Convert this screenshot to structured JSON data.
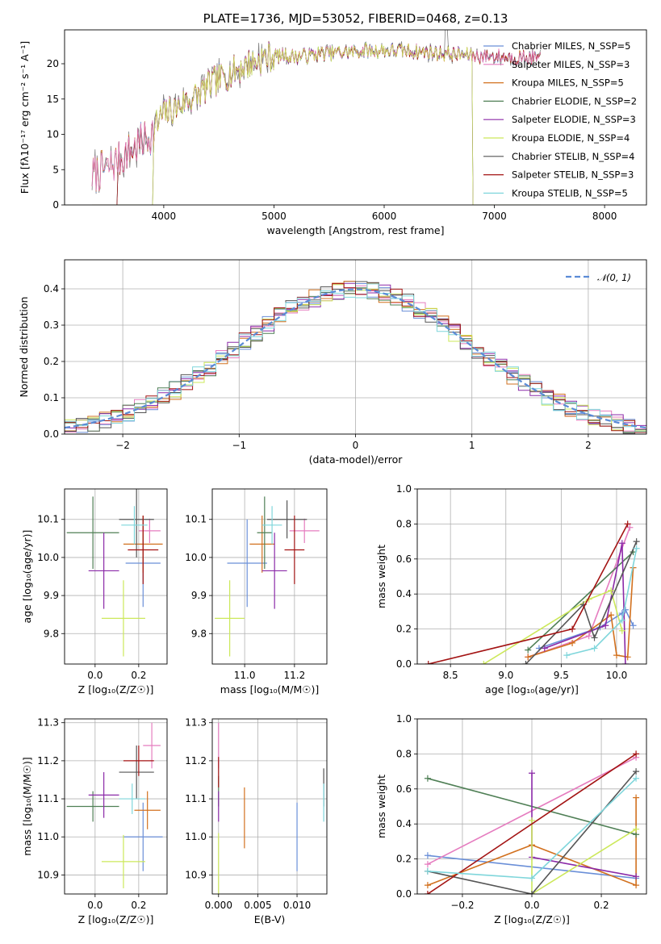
{
  "colors": {
    "chabrier_miles": "#6a8fd8",
    "salpeter_miles": "#e57cbf",
    "kroupa_miles": "#d2711f",
    "chabrier_elodie": "#4f7f55",
    "salpeter_elodie": "#8b2aa8",
    "kroupa_elodie": "#cce85a",
    "chabrier_stelib": "#555555",
    "salpeter_stelib": "#a31313",
    "kroupa_stelib": "#7fd6db",
    "normal_curve": "#5b8bd6",
    "grid": "#b0b0b0"
  },
  "chart_data": [
    {
      "id": "spectrum",
      "type": "line",
      "title": "PLATE=1736, MJD=53052, FIBERID=0468, z=0.13",
      "xlabel": "wavelength [Angstrom, rest frame]",
      "ylabel": "Flux [fλ10⁻¹⁷ erg cm⁻² s⁻¹ A⁻¹]",
      "xlim": [
        3100,
        8380
      ],
      "ylim": [
        0,
        24.8
      ],
      "xticks": [
        "4000",
        "5000",
        "6000",
        "7000",
        "8000"
      ],
      "yticks": [
        "0",
        "5",
        "10",
        "15",
        "20"
      ],
      "legend_position": "right",
      "grid": false,
      "series": [
        {
          "name": "Chabrier MILES, N_SSP=5"
        },
        {
          "name": "Salpeter MILES, N_SSP=3"
        },
        {
          "name": "Kroupa MILES, N_SSP=5"
        },
        {
          "name": "Chabrier ELODIE, N_SSP=2"
        },
        {
          "name": "Salpeter ELODIE, N_SSP=3"
        },
        {
          "name": "Kroupa ELODIE, N_SSP=4"
        },
        {
          "name": "Chabrier STELIB, N_SSP=4"
        },
        {
          "name": "Salpeter STELIB, N_SSP=3"
        },
        {
          "name": "Kroupa STELIB, N_SSP=5"
        }
      ],
      "approx_continuum": {
        "x": [
          3350,
          3500,
          3600,
          3700,
          3800,
          3900,
          4000,
          4100,
          4200,
          4300,
          4400,
          4500,
          4600,
          4700,
          4800,
          4900,
          5000,
          5200,
          5400,
          5600,
          5800,
          6000,
          6200,
          6400,
          6600,
          6800,
          7000,
          7200,
          7400
        ],
        "y": [
          4.2,
          5.3,
          6.5,
          7.7,
          8.9,
          10.3,
          12.8,
          13.6,
          14.8,
          15.5,
          16.8,
          17.8,
          18.6,
          19.5,
          20.1,
          20.8,
          21.2,
          21.0,
          21.4,
          21.6,
          21.8,
          21.9,
          21.8,
          21.6,
          21.4,
          21.2,
          21.0,
          20.9,
          20.8
        ]
      },
      "model_cutoffs": [
        {
          "series": "Kroupa ELODIE, N_SSP=4",
          "x_start": 3900,
          "x_end": 6800
        },
        {
          "series": "Chabrier ELODIE, N_SSP=2",
          "x_start": 3900,
          "x_end": 6800
        },
        {
          "series": "Salpeter ELODIE, N_SSP=3",
          "x_start": 3900,
          "x_end": 6800
        },
        {
          "series": "Chabrier STELIB, N_SSP=4",
          "x_start": 3580,
          "x_end": 7420
        },
        {
          "series": "Salpeter STELIB, N_SSP=3",
          "x_start": 3580,
          "x_end": 7420
        },
        {
          "series": "Kroupa STELIB, N_SSP=5",
          "x_start": 3580,
          "x_end": 7420
        }
      ]
    },
    {
      "id": "residuals",
      "type": "line",
      "xlabel": "(data-model)/error",
      "ylabel": "Normed distribution",
      "xlim": [
        -2.5,
        2.5
      ],
      "ylim": [
        0,
        0.48
      ],
      "xticks": [
        "−2",
        "−1",
        "0",
        "1",
        "2"
      ],
      "yticks": [
        "0.0",
        "0.1",
        "0.2",
        "0.3",
        "0.4"
      ],
      "grid": true,
      "legend_position": "top-right",
      "normal_curve": {
        "name": "𝒩(0, 1)",
        "mean": 0,
        "sigma": 1
      },
      "bin_width": 0.1
    },
    {
      "id": "z-age",
      "type": "scatter",
      "xlabel": "Z [log₁₀(Z/Z☉)]",
      "ylabel": "age  [log₁₀(age/yr)]",
      "xlim": [
        -0.14,
        0.33
      ],
      "ylim": [
        9.72,
        10.18
      ],
      "xticks": [
        "0.0",
        "0.2"
      ],
      "yticks": [
        "9.8",
        "9.9",
        "10.0",
        "10.1"
      ],
      "grid": true,
      "points": [
        {
          "series": "Chabrier MILES",
          "x": 0.22,
          "y": 9.985,
          "xerr": 0.08,
          "yerr": 0.115
        },
        {
          "series": "Salpeter MILES",
          "x": 0.25,
          "y": 10.07,
          "xerr": 0.05,
          "yerr": 0.032
        },
        {
          "series": "Kroupa MILES",
          "x": 0.22,
          "y": 10.035,
          "xerr": 0.09,
          "yerr": 0.075
        },
        {
          "series": "Chabrier ELODIE",
          "x": -0.01,
          "y": 10.065,
          "xerr": 0.12,
          "yerr": 0.095
        },
        {
          "series": "Salpeter ELODIE",
          "x": 0.04,
          "y": 9.965,
          "xerr": 0.07,
          "yerr": 0.1
        },
        {
          "series": "Kroupa ELODIE",
          "x": 0.13,
          "y": 9.84,
          "xerr": 0.1,
          "yerr": 0.1
        },
        {
          "series": "Chabrier STELIB",
          "x": 0.19,
          "y": 10.1,
          "xerr": 0.08,
          "yerr": 0.1
        },
        {
          "series": "Salpeter STELIB",
          "x": 0.22,
          "y": 10.02,
          "xerr": 0.07,
          "yerr": 0.09
        },
        {
          "series": "Kroupa STELIB",
          "x": 0.18,
          "y": 10.085,
          "xerr": 0.06,
          "yerr": 0.05
        }
      ]
    },
    {
      "id": "mass-age",
      "type": "scatter",
      "xlabel": "mass [log₁₀(M/M☉)]",
      "ylabel": "",
      "xlim": [
        10.87,
        11.33
      ],
      "ylim": [
        9.72,
        10.18
      ],
      "xticks": [
        "11.0",
        "11.2"
      ],
      "yticks": [
        "9.8",
        "9.9",
        "10.0",
        "10.1"
      ],
      "grid": true,
      "points": [
        {
          "series": "Chabrier MILES",
          "x": 11.01,
          "y": 9.985,
          "xerr": 0.08,
          "yerr": 0.115
        },
        {
          "series": "Salpeter MILES",
          "x": 11.24,
          "y": 10.07,
          "xerr": 0.06,
          "yerr": 0.032
        },
        {
          "series": "Kroupa MILES",
          "x": 11.07,
          "y": 10.035,
          "xerr": 0.05,
          "yerr": 0.075
        },
        {
          "series": "Chabrier ELODIE",
          "x": 11.08,
          "y": 10.065,
          "xerr": 0.03,
          "yerr": 0.095
        },
        {
          "series": "Salpeter ELODIE",
          "x": 11.12,
          "y": 9.965,
          "xerr": 0.05,
          "yerr": 0.1
        },
        {
          "series": "Kroupa ELODIE",
          "x": 10.94,
          "y": 9.84,
          "xerr": 0.06,
          "yerr": 0.1
        },
        {
          "series": "Chabrier STELIB",
          "x": 11.17,
          "y": 10.1,
          "xerr": 0.08,
          "yerr": 0.05
        },
        {
          "series": "Salpeter STELIB",
          "x": 11.2,
          "y": 10.02,
          "xerr": 0.04,
          "yerr": 0.09
        },
        {
          "series": "Kroupa STELIB",
          "x": 11.11,
          "y": 10.085,
          "xerr": 0.04,
          "yerr": 0.05
        }
      ]
    },
    {
      "id": "age-weight",
      "type": "line",
      "xlabel": "age  [log₁₀(age/yr)]",
      "ylabel": "mass weight",
      "xlim": [
        8.2,
        10.27
      ],
      "ylim": [
        0.0,
        1.0
      ],
      "xticks": [
        "8.5",
        "9.0",
        "9.5",
        "10.0"
      ],
      "yticks": [
        "0.0",
        "0.2",
        "0.4",
        "0.6",
        "0.8",
        "1.0"
      ],
      "grid": true,
      "series": [
        {
          "name": "Chabrier MILES",
          "x": [
            9.3,
            9.85,
            10.05,
            10.08,
            10.15
          ],
          "y": [
            0.09,
            0.21,
            0.29,
            0.31,
            0.22
          ]
        },
        {
          "name": "Salpeter MILES",
          "x": [
            9.2,
            9.75,
            10.12
          ],
          "y": [
            0.04,
            0.16,
            0.78
          ]
        },
        {
          "name": "Kroupa MILES",
          "x": [
            9.2,
            9.6,
            9.95,
            10.0,
            10.1,
            10.15
          ],
          "y": [
            0.04,
            0.12,
            0.28,
            0.05,
            0.04,
            0.55
          ]
        },
        {
          "name": "Chabrier ELODIE",
          "x": [
            9.2,
            10.15
          ],
          "y": [
            0.08,
            0.64
          ]
        },
        {
          "name": "Salpeter ELODIE",
          "x": [
            9.35,
            9.9,
            10.05,
            10.08
          ],
          "y": [
            0.09,
            0.22,
            0.69,
            0.0
          ]
        },
        {
          "name": "Kroupa ELODIE",
          "x": [
            8.8,
            9.75,
            9.95,
            10.05
          ],
          "y": [
            0.0,
            0.37,
            0.42,
            0.19
          ]
        },
        {
          "name": "Chabrier STELIB",
          "x": [
            9.18,
            9.7,
            9.8,
            10.18
          ],
          "y": [
            0.0,
            0.34,
            0.15,
            0.7
          ]
        },
        {
          "name": "Salpeter STELIB",
          "x": [
            8.3,
            9.6,
            10.1
          ],
          "y": [
            0.0,
            0.2,
            0.8
          ]
        },
        {
          "name": "Kroupa STELIB",
          "x": [
            9.55,
            9.8,
            10.05,
            10.18
          ],
          "y": [
            0.05,
            0.09,
            0.25,
            0.66
          ]
        }
      ]
    },
    {
      "id": "z-mass",
      "type": "scatter",
      "xlabel": "Z [log₁₀(Z/Z☉)]",
      "ylabel": "mass [log₁₀(M/M☉)]",
      "xlim": [
        -0.14,
        0.33
      ],
      "ylim": [
        10.85,
        11.31
      ],
      "xticks": [
        "0.0",
        "0.2"
      ],
      "yticks": [
        "10.9",
        "11.0",
        "11.1",
        "11.2",
        "11.3"
      ],
      "grid": true,
      "points": [
        {
          "series": "Chabrier MILES",
          "x": 0.22,
          "y": 11.0,
          "xerr": 0.09,
          "yerr": 0.09
        },
        {
          "series": "Salpeter MILES",
          "x": 0.26,
          "y": 11.24,
          "xerr": 0.04,
          "yerr": 0.06
        },
        {
          "series": "Kroupa MILES",
          "x": 0.24,
          "y": 11.07,
          "xerr": 0.06,
          "yerr": 0.05
        },
        {
          "series": "Chabrier ELODIE",
          "x": -0.01,
          "y": 11.08,
          "xerr": 0.12,
          "yerr": 0.04
        },
        {
          "series": "Salpeter ELODIE",
          "x": 0.04,
          "y": 11.11,
          "xerr": 0.07,
          "yerr": 0.06
        },
        {
          "series": "Kroupa ELODIE",
          "x": 0.13,
          "y": 10.935,
          "xerr": 0.1,
          "yerr": 0.07
        },
        {
          "series": "Chabrier STELIB",
          "x": 0.19,
          "y": 11.17,
          "xerr": 0.08,
          "yerr": 0.07
        },
        {
          "series": "Salpeter STELIB",
          "x": 0.2,
          "y": 11.2,
          "xerr": 0.07,
          "yerr": 0.04
        },
        {
          "series": "Kroupa STELIB",
          "x": 0.17,
          "y": 11.1,
          "xerr": 0.06,
          "yerr": 0.04
        }
      ]
    },
    {
      "id": "ebv-mass",
      "type": "scatter",
      "xlabel": "E(B-V)",
      "ylabel": "",
      "xlim": [
        -0.0008,
        0.0138
      ],
      "ylim": [
        10.85,
        11.31
      ],
      "xticks": [
        "0.000",
        "0.005",
        "0.010"
      ],
      "yticks": [
        "10.9",
        "11.0",
        "11.1",
        "11.2",
        "11.3"
      ],
      "grid": true,
      "points": [
        {
          "series": "Chabrier MILES",
          "x": 0.01,
          "y": 11.0,
          "xerr": 0,
          "yerr": 0.09
        },
        {
          "series": "Salpeter MILES",
          "x": 0.0,
          "y": 11.24,
          "xerr": 0,
          "yerr": 0.06
        },
        {
          "series": "Kroupa MILES",
          "x": 0.0033,
          "y": 11.05,
          "xerr": 0,
          "yerr": 0.08
        },
        {
          "series": "Chabrier ELODIE",
          "x": 0.0,
          "y": 11.12,
          "xerr": 0,
          "yerr": 0.04
        },
        {
          "series": "Salpeter ELODIE",
          "x": 0.0,
          "y": 11.08,
          "xerr": 0,
          "yerr": 0.04
        },
        {
          "series": "Kroupa ELODIE",
          "x": 0.0,
          "y": 10.93,
          "xerr": 0,
          "yerr": 0.08
        },
        {
          "series": "Chabrier STELIB",
          "x": 0.0134,
          "y": 11.13,
          "xerr": 0,
          "yerr": 0.05
        },
        {
          "series": "Salpeter STELIB",
          "x": 0.0,
          "y": 11.17,
          "xerr": 0,
          "yerr": 0.04
        },
        {
          "series": "Kroupa STELIB",
          "x": 0.0134,
          "y": 11.09,
          "xerr": 0,
          "yerr": 0.05
        }
      ]
    },
    {
      "id": "z-weight",
      "type": "line",
      "xlabel": "Z [log₁₀(Z/Z☉)]",
      "ylabel": "mass weight",
      "xlim": [
        -0.33,
        0.33
      ],
      "ylim": [
        0.0,
        1.0
      ],
      "xticks": [
        "−0.2",
        "0.0",
        "0.2"
      ],
      "yticks": [
        "0.0",
        "0.2",
        "0.4",
        "0.6",
        "0.8",
        "1.0"
      ],
      "grid": true,
      "series": [
        {
          "name": "Chabrier MILES",
          "x": [
            -0.3,
            0.3
          ],
          "y": [
            0.22,
            0.09
          ]
        },
        {
          "name": "Salpeter MILES",
          "x": [
            -0.3,
            0.3
          ],
          "y": [
            0.17,
            0.78
          ]
        },
        {
          "name": "Kroupa MILES",
          "x": [
            -0.3,
            0.0,
            0.3,
            0.3
          ],
          "y": [
            0.05,
            0.28,
            0.05,
            0.55
          ]
        },
        {
          "name": "Chabrier ELODIE",
          "x": [
            -0.3,
            0.3
          ],
          "y": [
            0.66,
            0.34
          ]
        },
        {
          "name": "Salpeter ELODIE",
          "x": [
            0.0,
            0.0,
            0.3
          ],
          "y": [
            0.69,
            0.21,
            0.1
          ]
        },
        {
          "name": "Kroupa ELODIE",
          "x": [
            0.0,
            0.0,
            0.3
          ],
          "y": [
            0.42,
            0.0,
            0.37
          ]
        },
        {
          "name": "Chabrier STELIB",
          "x": [
            -0.3,
            0.0,
            0.3
          ],
          "y": [
            0.13,
            0.0,
            0.7
          ]
        },
        {
          "name": "Salpeter STELIB",
          "x": [
            -0.3,
            0.3
          ],
          "y": [
            0.0,
            0.8
          ]
        },
        {
          "name": "Kroupa STELIB",
          "x": [
            -0.3,
            0.0,
            0.3
          ],
          "y": [
            0.13,
            0.09,
            0.66
          ]
        }
      ]
    }
  ]
}
